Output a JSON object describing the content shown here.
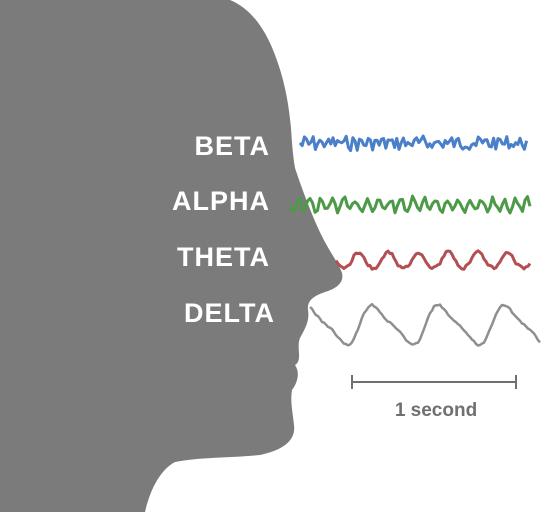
{
  "bands": [
    {
      "label": "BETA",
      "color": "#4a7fc9"
    },
    {
      "label": "ALPHA",
      "color": "#4c9a48"
    },
    {
      "label": "THETA",
      "color": "#b34f52"
    },
    {
      "label": "DELTA",
      "color": "#8f8f8f"
    }
  ],
  "scale_bar": {
    "label": "1 second"
  },
  "colors": {
    "head": "#7b7b7b",
    "background": "#ffffff",
    "scale_bar": "#707070"
  }
}
